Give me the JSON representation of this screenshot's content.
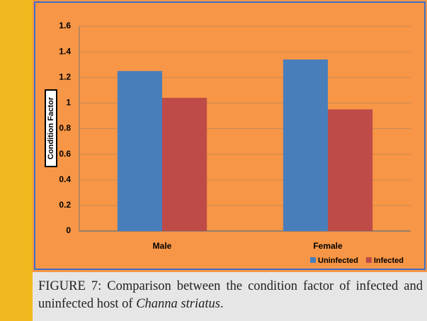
{
  "chart_data": {
    "type": "bar",
    "ylabel": "Condition Factor",
    "categories": [
      "Male",
      "Female"
    ],
    "series": [
      {
        "name": "Uninfected",
        "color": "#4a7ebb",
        "values": [
          1.25,
          1.34
        ]
      },
      {
        "name": "Infected",
        "color": "#be4b48",
        "values": [
          1.04,
          0.95
        ]
      }
    ],
    "ylim": [
      0,
      1.6
    ],
    "yticks": [
      0,
      0.2,
      0.4,
      0.6,
      0.8,
      1,
      1.2,
      1.4,
      1.6
    ],
    "grid": true,
    "legend": "bottom-right",
    "caption": {
      "text": "FIGURE 7: Comparison between the condition factor of infected and uninfected host of ",
      "species": "Channa striatus",
      "end": "."
    }
  }
}
